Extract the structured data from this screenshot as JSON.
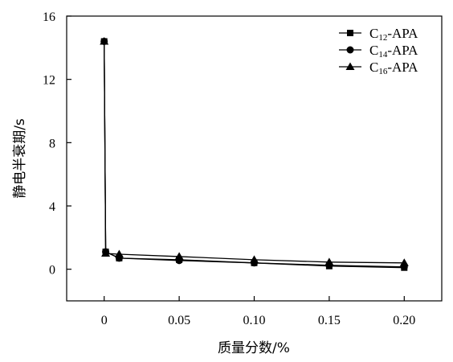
{
  "chart_data": {
    "type": "line",
    "xlabel": "质量分数/%",
    "ylabel": "静电半衰期/s",
    "xlim": [
      -0.025,
      0.225
    ],
    "ylim": [
      -2,
      16
    ],
    "x_ticks": [
      0,
      0.05,
      0.1,
      0.15,
      0.2
    ],
    "x_tick_labels": [
      "0",
      "0.05",
      "0.10",
      "0.15",
      "0.20"
    ],
    "y_ticks": [
      0,
      4,
      8,
      12,
      16
    ],
    "y_tick_labels": [
      "0",
      "4",
      "8",
      "12",
      "16"
    ],
    "grid": false,
    "legend_position": "top-right",
    "series": [
      {
        "name": "C12-APA",
        "legend": {
          "base": "C",
          "sub": "12",
          "suffix": "-APA"
        },
        "marker": "square",
        "x": [
          0,
          0.001,
          0.01,
          0.05,
          0.1,
          0.15,
          0.2
        ],
        "y": [
          14.4,
          1.1,
          0.7,
          0.6,
          0.4,
          0.2,
          0.1
        ]
      },
      {
        "name": "C14-APA",
        "legend": {
          "base": "C",
          "sub": "14",
          "suffix": "-APA"
        },
        "marker": "circle",
        "x": [
          0,
          0.001,
          0.01,
          0.05,
          0.1,
          0.15,
          0.2
        ],
        "y": [
          14.4,
          1.1,
          0.7,
          0.55,
          0.4,
          0.25,
          0.15
        ]
      },
      {
        "name": "C16-APA",
        "legend": {
          "base": "C",
          "sub": "16",
          "suffix": "-APA"
        },
        "marker": "triangle",
        "x": [
          0,
          0.001,
          0.01,
          0.05,
          0.1,
          0.15,
          0.2
        ],
        "y": [
          14.4,
          1.0,
          0.95,
          0.8,
          0.6,
          0.45,
          0.4
        ]
      }
    ]
  }
}
